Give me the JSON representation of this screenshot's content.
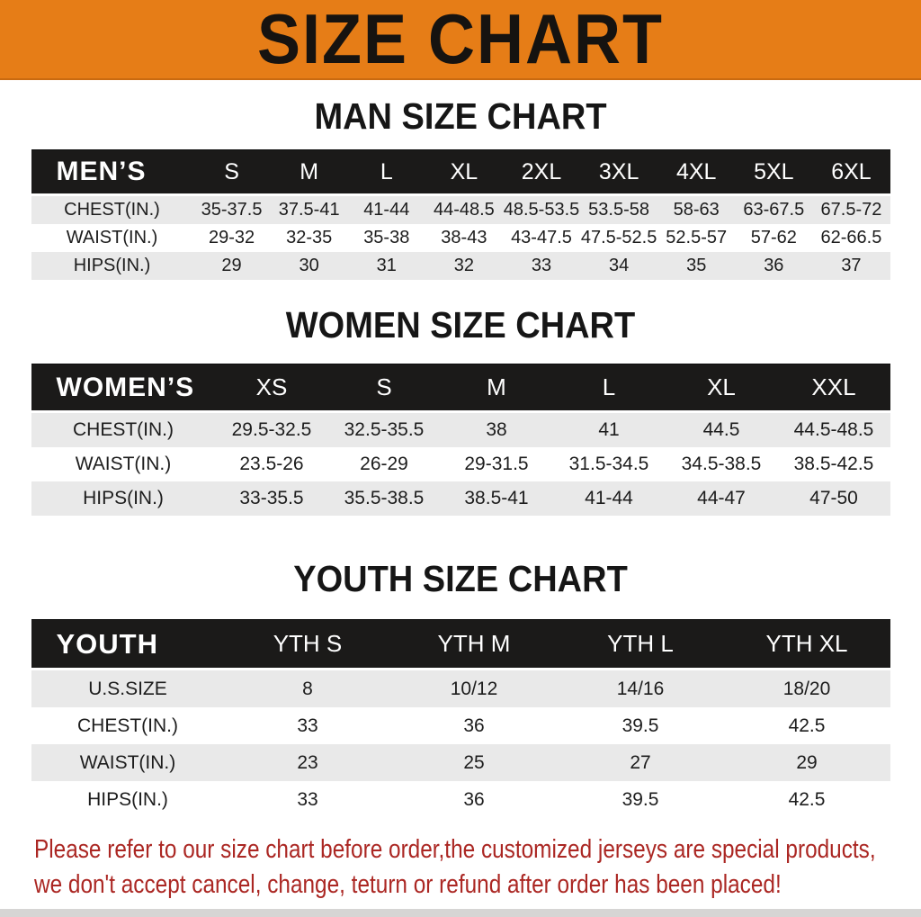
{
  "banner": {
    "title": "SIZE CHART"
  },
  "sections": [
    {
      "heading": "MAN SIZE CHART",
      "table": {
        "label": "MEN’S",
        "columns": [
          "S",
          "M",
          "L",
          "XL",
          "2XL",
          "3XL",
          "4XL",
          "5XL",
          "6XL"
        ],
        "rows": [
          {
            "label": "CHEST(IN.)",
            "values": [
              "35-37.5",
              "37.5-41",
              "41-44",
              "44-48.5",
              "48.5-53.5",
              "53.5-58",
              "58-63",
              "63-67.5",
              "67.5-72"
            ]
          },
          {
            "label": "WAIST(IN.)",
            "values": [
              "29-32",
              "32-35",
              "35-38",
              "38-43",
              "43-47.5",
              "47.5-52.5",
              "52.5-57",
              "57-62",
              "62-66.5"
            ]
          },
          {
            "label": "HIPS(IN.)",
            "values": [
              "29",
              "30",
              "31",
              "32",
              "33",
              "34",
              "35",
              "36",
              "37"
            ]
          }
        ]
      }
    },
    {
      "heading": "WOMEN SIZE CHART",
      "table": {
        "label": "WOMEN’S",
        "columns": [
          "XS",
          "S",
          "M",
          "L",
          "XL",
          "XXL"
        ],
        "rows": [
          {
            "label": "CHEST(IN.)",
            "values": [
              "29.5-32.5",
              "32.5-35.5",
              "38",
              "41",
              "44.5",
              "44.5-48.5"
            ]
          },
          {
            "label": "WAIST(IN.)",
            "values": [
              "23.5-26",
              "26-29",
              "29-31.5",
              "31.5-34.5",
              "34.5-38.5",
              "38.5-42.5"
            ]
          },
          {
            "label": "HIPS(IN.)",
            "values": [
              "33-35.5",
              "35.5-38.5",
              "38.5-41",
              "41-44",
              "44-47",
              "47-50"
            ]
          }
        ]
      }
    },
    {
      "heading": "YOUTH SIZE CHART",
      "table": {
        "label": "YOUTH",
        "columns": [
          "YTH S",
          "YTH M",
          "YTH L",
          "YTH XL"
        ],
        "rows": [
          {
            "label": "U.S.SIZE",
            "values": [
              "8",
              "10/12",
              "14/16",
              "18/20"
            ]
          },
          {
            "label": "CHEST(IN.)",
            "values": [
              "33",
              "36",
              "39.5",
              "42.5"
            ]
          },
          {
            "label": "WAIST(IN.)",
            "values": [
              "23",
              "25",
              "27",
              "29"
            ]
          },
          {
            "label": "HIPS(IN.)",
            "values": [
              "33",
              "36",
              "39.5",
              "42.5"
            ]
          }
        ]
      }
    }
  ],
  "footer": {
    "line1": "Please refer to our size chart before order,the customized jerseys are special products,",
    "line2": "we don't accept cancel, change, teturn or refund after order has been placed!"
  },
  "colors": {
    "banner_bg": "#e67d17",
    "table_header_bg": "#1b1a19",
    "row_stripe": "#e9e9e9",
    "footer_text": "#ab2723"
  }
}
